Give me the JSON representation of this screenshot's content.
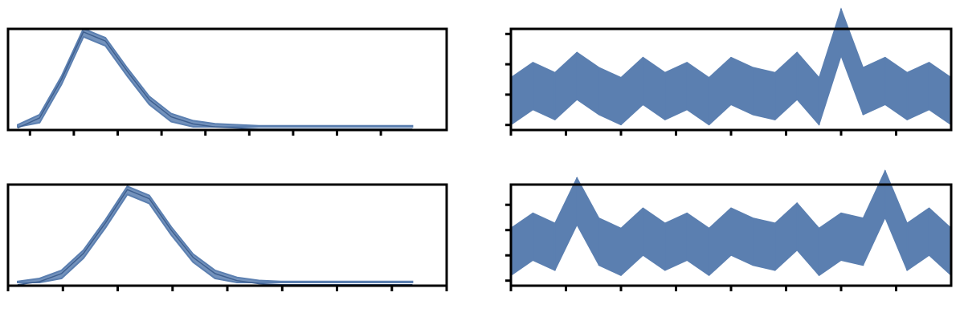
{
  "chart_data": [
    {
      "id": "tl",
      "type": "area",
      "title": "",
      "xlim": [
        0,
        10
      ],
      "ylim": [
        0,
        1
      ],
      "xticks": [
        0.5,
        1.5,
        2.5,
        3.5,
        4.5,
        5.5,
        6.5,
        7.5,
        8.5
      ],
      "series": [
        {
          "x": [
            0,
            0.5,
            1,
            1.5,
            2,
            2.5,
            3,
            3.5,
            4,
            4.5,
            5,
            5.5,
            6,
            6.5,
            7,
            7.5,
            8,
            8.5,
            9
          ],
          "y": [
            0.02,
            0.12,
            0.5,
            0.97,
            0.88,
            0.58,
            0.3,
            0.13,
            0.06,
            0.03,
            0.02,
            0.01,
            0.01,
            0.01,
            0.01,
            0.01,
            0.01,
            0.01,
            0.01
          ]
        }
      ]
    },
    {
      "id": "tr",
      "type": "line",
      "title": "",
      "xlim": [
        0,
        1000
      ],
      "ylim": [
        0,
        1
      ],
      "xticks": [
        0,
        125,
        250,
        375,
        500,
        625,
        750,
        875
      ],
      "yticks": [
        0.05,
        0.35,
        0.65,
        0.95
      ],
      "series": [
        {
          "x": [
            0,
            50,
            100,
            150,
            200,
            250,
            300,
            350,
            400,
            450,
            500,
            550,
            600,
            650,
            700,
            750,
            800,
            850,
            900,
            950,
            1000
          ],
          "y": [
            0.3,
            0.45,
            0.35,
            0.55,
            0.4,
            0.3,
            0.5,
            0.35,
            0.45,
            0.3,
            0.5,
            0.4,
            0.35,
            0.55,
            0.3,
            0.98,
            0.4,
            0.5,
            0.35,
            0.45,
            0.3
          ]
        }
      ]
    },
    {
      "id": "bl",
      "type": "area",
      "title": "",
      "xlim": [
        0,
        10
      ],
      "ylim": [
        0,
        1
      ],
      "xticks": [
        0,
        1.25,
        2.5,
        3.75,
        5,
        6.25,
        7.5,
        8.75,
        10
      ],
      "series": [
        {
          "x": [
            0,
            0.5,
            1,
            1.5,
            2,
            2.5,
            3,
            3.5,
            4,
            4.5,
            5,
            5.5,
            6,
            6.5,
            7,
            7.5,
            8,
            8.5,
            9
          ],
          "y": [
            0.01,
            0.04,
            0.12,
            0.32,
            0.62,
            0.95,
            0.86,
            0.55,
            0.28,
            0.12,
            0.05,
            0.02,
            0.01,
            0.01,
            0.01,
            0.01,
            0.01,
            0.01,
            0.01
          ]
        }
      ]
    },
    {
      "id": "br",
      "type": "line",
      "title": "",
      "xlim": [
        0,
        1000
      ],
      "ylim": [
        0,
        1
      ],
      "xticks": [
        0,
        125,
        250,
        375,
        500,
        625,
        750,
        875
      ],
      "yticks": [
        0.05,
        0.3,
        0.55,
        0.8
      ],
      "series": [
        {
          "x": [
            0,
            50,
            100,
            150,
            200,
            250,
            300,
            350,
            400,
            450,
            500,
            550,
            600,
            650,
            700,
            750,
            800,
            850,
            900,
            950,
            1000
          ],
          "y": [
            0.35,
            0.5,
            0.4,
            0.85,
            0.45,
            0.35,
            0.55,
            0.4,
            0.5,
            0.35,
            0.55,
            0.45,
            0.4,
            0.6,
            0.35,
            0.5,
            0.45,
            0.92,
            0.4,
            0.55,
            0.35
          ]
        }
      ]
    }
  ]
}
